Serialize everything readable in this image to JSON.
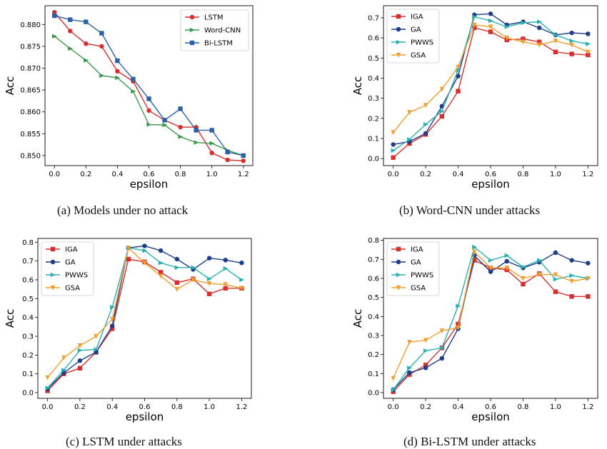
{
  "figure": {
    "captions": [
      "(a)  Models under no attack",
      "(b)  Word-CNN under attacks",
      "(c)  LSTM under attacks",
      "(d)  Bi-LSTM under attacks"
    ]
  },
  "chart_data": [
    {
      "type": "line",
      "title": "",
      "xlabel": "epsilon",
      "ylabel": "Acc",
      "x": [
        0.0,
        0.1,
        0.2,
        0.3,
        0.4,
        0.5,
        0.6,
        0.7,
        0.8,
        0.9,
        1.0,
        1.1,
        1.2
      ],
      "xlim": [
        -0.06,
        1.26
      ],
      "ylim": [
        0.8477,
        0.8843
      ],
      "xticks": [
        0.0,
        0.2,
        0.4,
        0.6,
        0.8,
        1.0,
        1.2
      ],
      "yticks": [
        0.85,
        0.855,
        0.86,
        0.865,
        0.87,
        0.875,
        0.88
      ],
      "xtick_labels": [
        "0.0",
        "0.2",
        "0.4",
        "0.6",
        "0.8",
        "1.0",
        "1.2"
      ],
      "ytick_labels": [
        "0.850",
        "0.855",
        "0.860",
        "0.865",
        "0.870",
        "0.875",
        "0.880"
      ],
      "grid": false,
      "legend": "top-right",
      "series": [
        {
          "name": "LSTM",
          "color": "#d62f2f",
          "marker": "circle",
          "values": [
            0.8828,
            0.8785,
            0.8756,
            0.875,
            0.8693,
            0.867,
            0.8603,
            0.8581,
            0.8565,
            0.8565,
            0.8506,
            0.849,
            0.8488
          ]
        },
        {
          "name": "Word-CNN",
          "color": "#3a9a4a",
          "marker": "triangle-right",
          "values": [
            0.8773,
            0.8745,
            0.8718,
            0.8683,
            0.8678,
            0.8647,
            0.8571,
            0.857,
            0.8543,
            0.853,
            0.8528,
            0.8512,
            0.85
          ]
        },
        {
          "name": "Bi-LSTM",
          "color": "#2a62a8",
          "marker": "square",
          "values": [
            0.882,
            0.8811,
            0.8806,
            0.878,
            0.8717,
            0.8675,
            0.863,
            0.8581,
            0.8607,
            0.8558,
            0.8558,
            0.8508,
            0.85
          ]
        }
      ]
    },
    {
      "type": "line",
      "title": "",
      "xlabel": "epsilon",
      "ylabel": "Acc",
      "x": [
        0.0,
        0.1,
        0.2,
        0.3,
        0.4,
        0.5,
        0.6,
        0.7,
        0.8,
        0.9,
        1.0,
        1.1,
        1.2
      ],
      "xlim": [
        -0.06,
        1.26
      ],
      "ylim": [
        -0.035,
        0.76
      ],
      "xticks": [
        0.0,
        0.2,
        0.4,
        0.6,
        0.8,
        1.0,
        1.2
      ],
      "yticks": [
        0.0,
        0.1,
        0.2,
        0.3,
        0.4,
        0.5,
        0.6,
        0.7
      ],
      "xtick_labels": [
        "0.0",
        "0.2",
        "0.4",
        "0.6",
        "0.8",
        "1.0",
        "1.2"
      ],
      "ytick_labels": [
        "0.0",
        "0.1",
        "0.2",
        "0.3",
        "0.4",
        "0.5",
        "0.6",
        "0.7"
      ],
      "grid": false,
      "legend": "top-left",
      "series": [
        {
          "name": "IGA",
          "color": "#d62f2f",
          "marker": "square",
          "values": [
            0.005,
            0.075,
            0.12,
            0.21,
            0.335,
            0.65,
            0.63,
            0.59,
            0.595,
            0.58,
            0.53,
            0.52,
            0.515
          ]
        },
        {
          "name": "GA",
          "color": "#1f3d8a",
          "marker": "circle",
          "values": [
            0.07,
            0.085,
            0.125,
            0.26,
            0.41,
            0.715,
            0.72,
            0.665,
            0.68,
            0.65,
            0.615,
            0.625,
            0.62
          ]
        },
        {
          "name": "PWWS",
          "color": "#2bb0b0",
          "marker": "triangle-right",
          "values": [
            0.04,
            0.095,
            0.17,
            0.235,
            0.44,
            0.705,
            0.685,
            0.655,
            0.675,
            0.68,
            0.615,
            0.585,
            0.57
          ]
        },
        {
          "name": "GSA",
          "color": "#f0a030",
          "marker": "triangle-down",
          "values": [
            0.13,
            0.23,
            0.265,
            0.345,
            0.455,
            0.665,
            0.655,
            0.6,
            0.58,
            0.565,
            0.585,
            0.565,
            0.53
          ]
        }
      ]
    },
    {
      "type": "line",
      "title": "",
      "xlabel": "epsilon",
      "ylabel": "Acc",
      "x": [
        0.0,
        0.1,
        0.2,
        0.3,
        0.4,
        0.5,
        0.6,
        0.7,
        0.8,
        0.9,
        1.0,
        1.1,
        1.2
      ],
      "xlim": [
        -0.06,
        1.26
      ],
      "ylim": [
        -0.03,
        0.82
      ],
      "xticks": [
        0.0,
        0.2,
        0.4,
        0.6,
        0.8,
        1.0,
        1.2
      ],
      "yticks": [
        0.0,
        0.1,
        0.2,
        0.3,
        0.4,
        0.5,
        0.6,
        0.7,
        0.8
      ],
      "xtick_labels": [
        "0.0",
        "0.2",
        "0.4",
        "0.6",
        "0.8",
        "1.0",
        "1.2"
      ],
      "ytick_labels": [
        "0.0",
        "0.1",
        "0.2",
        "0.3",
        "0.4",
        "0.5",
        "0.6",
        "0.7",
        "0.8"
      ],
      "grid": false,
      "legend": "top-left",
      "series": [
        {
          "name": "IGA",
          "color": "#d62f2f",
          "marker": "square",
          "values": [
            0.01,
            0.1,
            0.13,
            0.215,
            0.34,
            0.71,
            0.695,
            0.64,
            0.585,
            0.605,
            0.525,
            0.555,
            0.555
          ]
        },
        {
          "name": "GA",
          "color": "#1f3d8a",
          "marker": "circle",
          "values": [
            0.02,
            0.105,
            0.17,
            0.215,
            0.355,
            0.77,
            0.78,
            0.755,
            0.71,
            0.655,
            0.715,
            0.705,
            0.69
          ]
        },
        {
          "name": "PWWS",
          "color": "#2bb0b0",
          "marker": "triangle-right",
          "values": [
            0.025,
            0.12,
            0.225,
            0.23,
            0.455,
            0.77,
            0.755,
            0.69,
            0.665,
            0.665,
            0.605,
            0.66,
            0.6
          ]
        },
        {
          "name": "GSA",
          "color": "#f0a030",
          "marker": "triangle-down",
          "values": [
            0.08,
            0.185,
            0.25,
            0.3,
            0.39,
            0.77,
            0.69,
            0.62,
            0.55,
            0.6,
            0.58,
            0.575,
            0.555
          ]
        }
      ]
    },
    {
      "type": "line",
      "title": "",
      "xlabel": "epsilon",
      "ylabel": "Acc",
      "x": [
        0.0,
        0.1,
        0.2,
        0.3,
        0.4,
        0.5,
        0.6,
        0.7,
        0.8,
        0.9,
        1.0,
        1.1,
        1.2
      ],
      "xlim": [
        -0.06,
        1.26
      ],
      "ylim": [
        -0.03,
        0.81
      ],
      "xticks": [
        0.0,
        0.2,
        0.4,
        0.6,
        0.8,
        1.0,
        1.2
      ],
      "yticks": [
        0.0,
        0.1,
        0.2,
        0.3,
        0.4,
        0.5,
        0.6,
        0.7,
        0.8
      ],
      "xtick_labels": [
        "0.0",
        "0.2",
        "0.4",
        "0.6",
        "0.8",
        "1.0",
        "1.2"
      ],
      "ytick_labels": [
        "0.0",
        "0.1",
        "0.2",
        "0.3",
        "0.4",
        "0.5",
        "0.6",
        "0.7",
        "0.8"
      ],
      "grid": false,
      "legend": "top-left",
      "series": [
        {
          "name": "IGA",
          "color": "#d62f2f",
          "marker": "square",
          "values": [
            0.005,
            0.095,
            0.145,
            0.235,
            0.36,
            0.695,
            0.655,
            0.645,
            0.57,
            0.625,
            0.53,
            0.505,
            0.505
          ]
        },
        {
          "name": "GA",
          "color": "#1f3d8a",
          "marker": "circle",
          "values": [
            0.015,
            0.105,
            0.13,
            0.18,
            0.335,
            0.72,
            0.635,
            0.69,
            0.655,
            0.685,
            0.735,
            0.695,
            0.68
          ]
        },
        {
          "name": "PWWS",
          "color": "#2bb0b0",
          "marker": "triangle-right",
          "values": [
            0.015,
            0.13,
            0.22,
            0.235,
            0.455,
            0.765,
            0.695,
            0.72,
            0.66,
            0.695,
            0.595,
            0.615,
            0.6
          ]
        },
        {
          "name": "GSA",
          "color": "#f0a030",
          "marker": "triangle-down",
          "values": [
            0.075,
            0.265,
            0.275,
            0.325,
            0.34,
            0.74,
            0.655,
            0.655,
            0.6,
            0.62,
            0.62,
            0.585,
            0.6
          ]
        }
      ]
    }
  ]
}
